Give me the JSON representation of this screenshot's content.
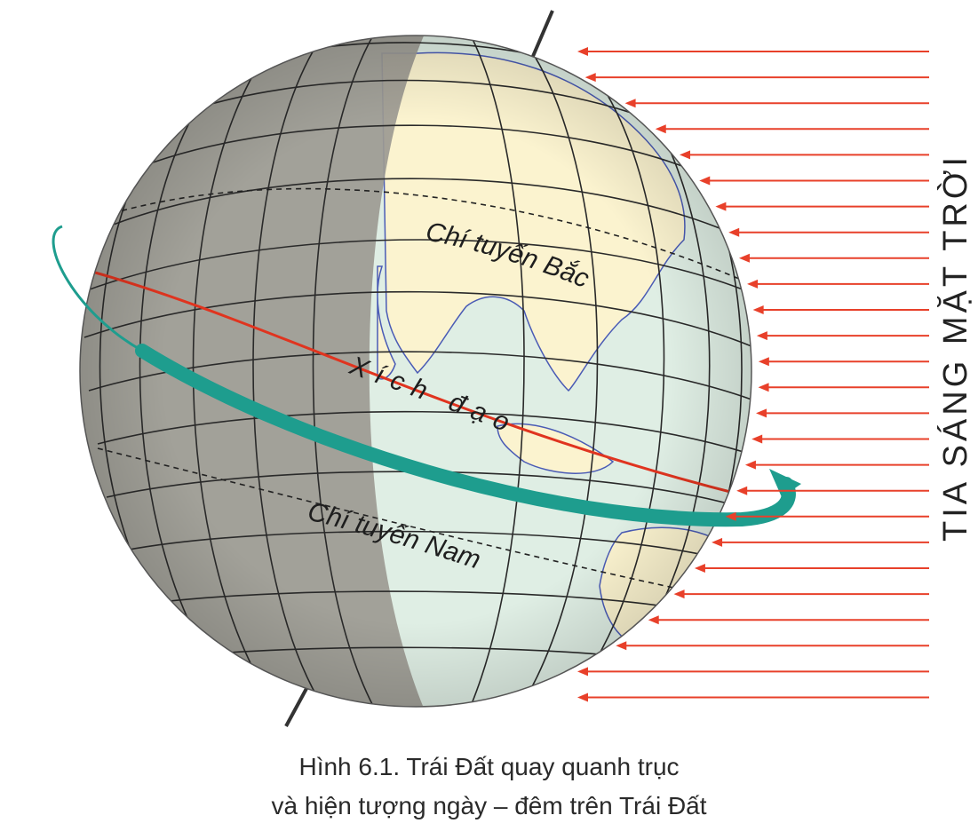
{
  "figure": {
    "labels": {
      "tropic_north": "Chí tuyến Bắc",
      "equator": "Xích đạo",
      "tropic_south": "Chí tuyến Nam",
      "sunlight": "TIA SÁNG MẶT TRỜI"
    },
    "caption": {
      "line1": "Hình 6.1. Trái Đất quay quanh trục",
      "line2": "và hiện tượng ngày – đêm trên Trái Đất"
    },
    "colors": {
      "day_side": "#dfeee4",
      "night_side": "#9c9a92",
      "land_day": "#fbf3cf",
      "sun_rays": "#e8402a",
      "equator_line": "#e0341f",
      "rotation_arrow": "#1e9d8e",
      "axis": "#333333"
    }
  }
}
